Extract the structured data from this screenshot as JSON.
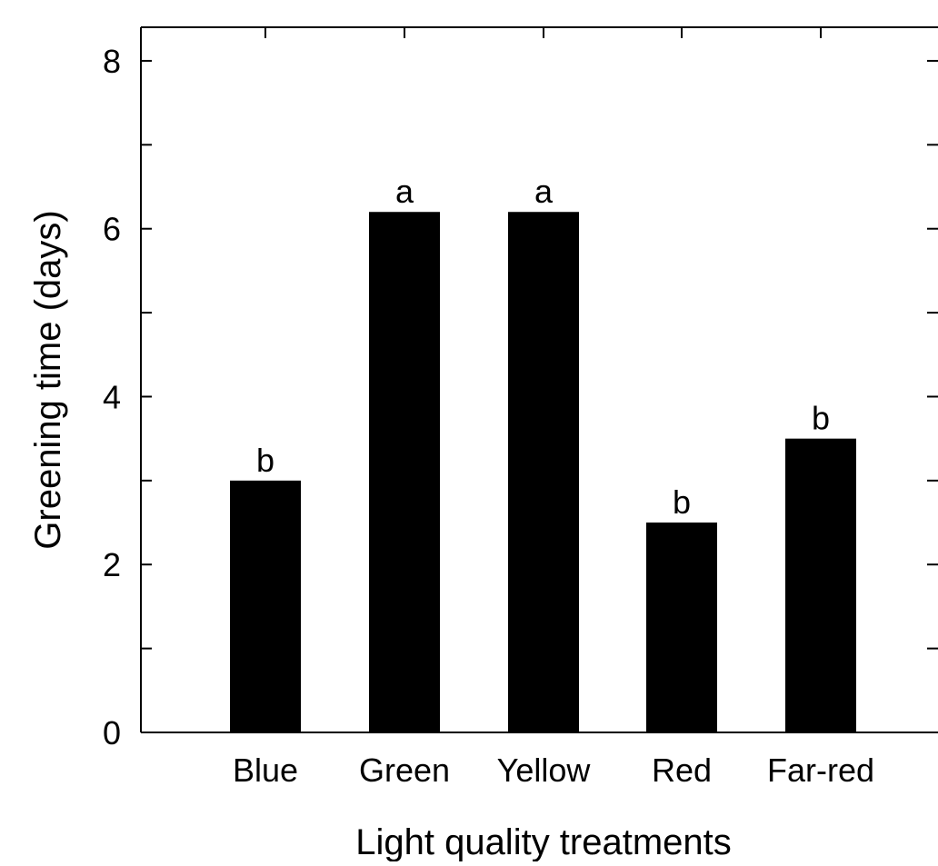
{
  "chart_data": {
    "type": "bar",
    "title": "",
    "xlabel": "Light quality treatments",
    "ylabel": "Greening time (days)",
    "categories": [
      "Blue",
      "Green",
      "Yellow",
      "Red",
      "Far-red"
    ],
    "values": [
      3.0,
      6.2,
      6.2,
      2.5,
      3.5
    ],
    "significance_letters": [
      "b",
      "a",
      "a",
      "b",
      "b"
    ],
    "ylim": [
      0,
      8.4
    ],
    "yticks": [
      0,
      2,
      4,
      6,
      8
    ],
    "bar_color": "#000000",
    "grid": false
  }
}
